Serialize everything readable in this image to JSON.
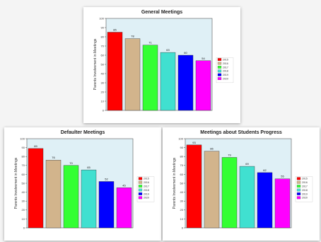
{
  "chart_data": [
    {
      "type": "bar",
      "title": "General Meetings",
      "ylabel": "Parents Involvement in Meetings",
      "xlabel": "",
      "categories": [
        "2015",
        "2016",
        "2017",
        "2018",
        "2019",
        "2020"
      ],
      "values": [
        85,
        78,
        71,
        63,
        60,
        54
      ],
      "ylim": [
        0,
        100
      ],
      "yticks": [
        0,
        10,
        20,
        30,
        40,
        50,
        60,
        70,
        80,
        90,
        100
      ],
      "legend": [
        "2015",
        "2016",
        "2017",
        "2018",
        "2019",
        "2020"
      ],
      "legend_position": "right",
      "grid": false
    },
    {
      "type": "bar",
      "title": "Defaulter Meetings",
      "ylabel": "Parents Involvement in Meetings",
      "xlabel": "",
      "categories": [
        "2015",
        "2016",
        "2017",
        "2018",
        "2019",
        "2020"
      ],
      "values": [
        89,
        76,
        70,
        65,
        52,
        45
      ],
      "ylim": [
        0,
        100
      ],
      "yticks": [
        0,
        10,
        20,
        30,
        40,
        50,
        60,
        70,
        80,
        90,
        100
      ],
      "legend": [
        "2015",
        "2016",
        "2017",
        "2018",
        "2019",
        "2020"
      ],
      "legend_position": "right",
      "grid": false
    },
    {
      "type": "bar",
      "title": "Meetings about Students Progress",
      "ylabel": "Parents Involvement in Meetings",
      "xlabel": "",
      "categories": [
        "2015",
        "2016",
        "2017",
        "2018",
        "2019",
        "2020"
      ],
      "values": [
        93,
        86,
        79,
        69,
        62,
        55
      ],
      "ylim": [
        0,
        100
      ],
      "yticks": [
        0,
        10,
        20,
        30,
        40,
        50,
        60,
        70,
        80,
        90,
        100
      ],
      "legend": [
        "2015",
        "2016",
        "2017",
        "2018",
        "2019",
        "2020"
      ],
      "legend_position": "right",
      "grid": false
    }
  ],
  "colors": {
    "series": [
      "#ff0000",
      "#d2b48c",
      "#33ff33",
      "#40e0d0",
      "#0000ff",
      "#ff00ff"
    ],
    "plot_background": "#dff0f6",
    "page_background": "#f4f4f4",
    "bar_outline": "#333333"
  }
}
